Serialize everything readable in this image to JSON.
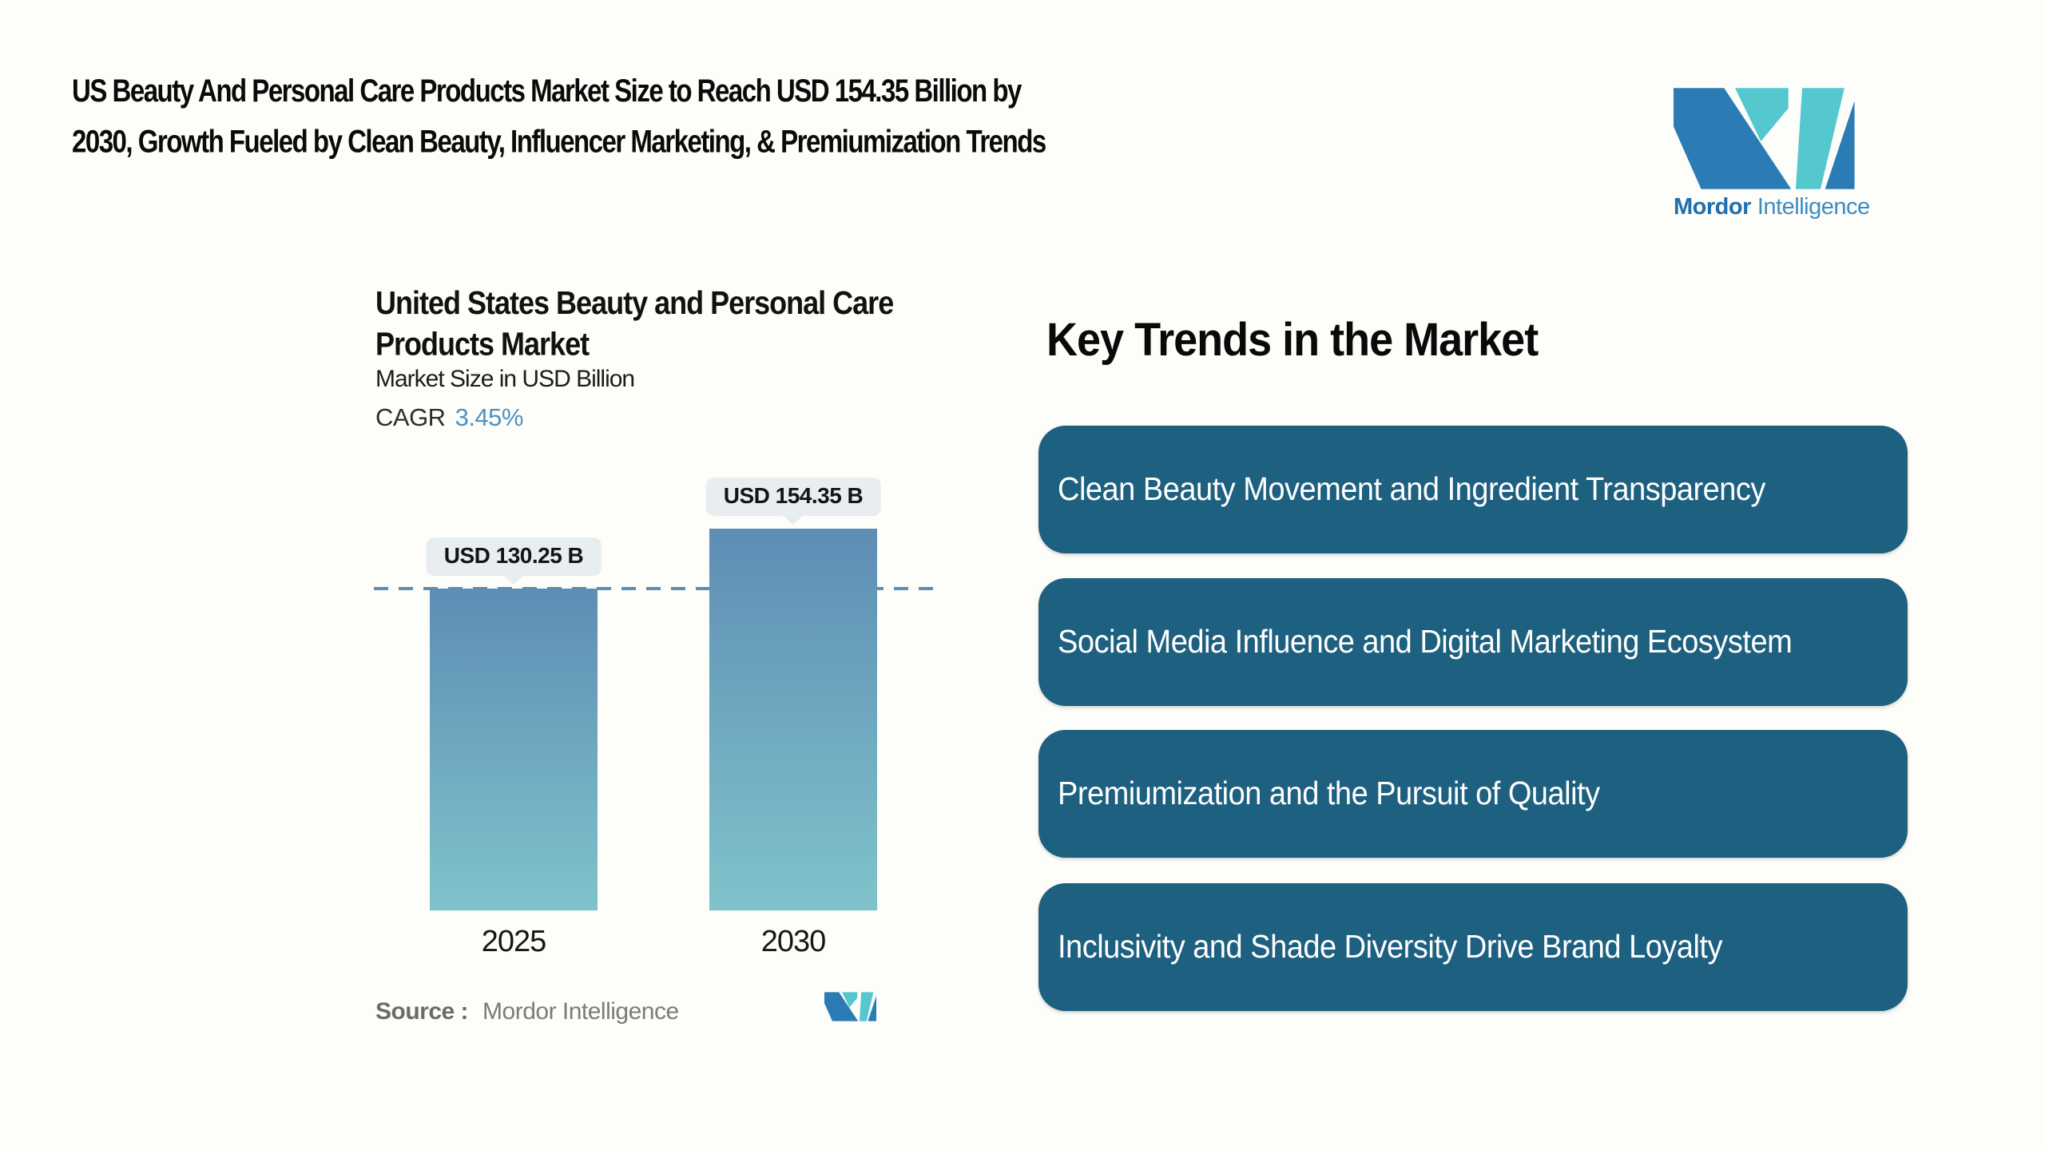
{
  "header": {
    "title_line1": "US Beauty And Personal Care Products Market Size to Reach USD 154.35 Billion by",
    "title_line2": "2030, Growth Fueled by Clean Beauty, Influencer Marketing, & Premiumization Trends"
  },
  "logo": {
    "name_bold": "Mordor",
    "name_light": "Intelligence",
    "blue": "#2b7cb5",
    "teal": "#54c7cf",
    "text_blue_bold": "#1e6fae",
    "text_blue_light": "#3c8cc4"
  },
  "chart": {
    "title_line1": "United States Beauty and Personal Care",
    "title_line2": "Products Market",
    "subtitle": "Market Size in USD Billion",
    "cagr_label": "CAGR",
    "cagr_value": "3.45%",
    "cagr_value_color": "#4e93be",
    "source_label": "Source :",
    "source_value": "Mordor Intelligence"
  },
  "chart_data": {
    "type": "bar",
    "title": "United States Beauty and Personal Care Products Market",
    "ylabel": "Market Size in USD Billion",
    "categories": [
      "2025",
      "2030"
    ],
    "values": [
      130.25,
      154.35
    ],
    "value_labels": [
      "USD 130.25 B",
      "USD 154.35 B"
    ],
    "unit": "USD Billion",
    "cagr_percent": 3.45,
    "ylim": [
      0,
      154.35
    ],
    "reference_line_value": 130.25,
    "grid": false,
    "bar_color_top": "#5e8db4",
    "bar_color_bottom": "#80c3cb",
    "dashed_line_color": "#5e8db4"
  },
  "trends": {
    "heading": "Key Trends in the Market",
    "box_color": "#1e6080",
    "items": [
      "Clean Beauty Movement and Ingredient Transparency",
      "Social Media Influence and Digital Marketing Ecosystem",
      "Premiumization and the Pursuit of Quality",
      "Inclusivity and Shade Diversity Drive Brand Loyalty"
    ]
  }
}
